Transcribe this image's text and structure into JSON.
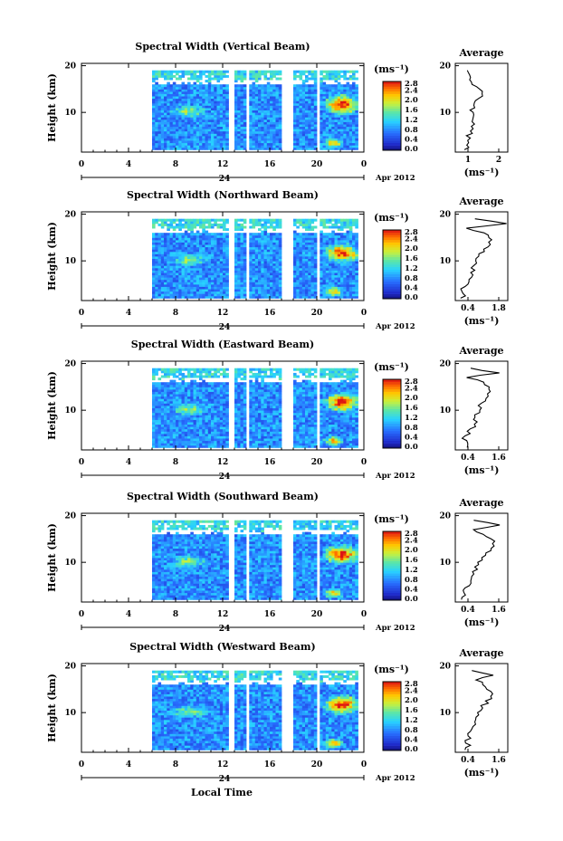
{
  "figure": {
    "xlabel": "Local Time",
    "day_label": "24",
    "date_label": "Apr 2012",
    "time_ticks": [
      "0",
      "4",
      "8",
      "12",
      "16",
      "20",
      "0"
    ],
    "height_ticks": [
      "20",
      "10"
    ],
    "ylabel": "Height (km)",
    "colorbar_unit": "(ms⁻¹)",
    "colorbar_ticks": [
      "2.8",
      "2.4",
      "2.0",
      "1.6",
      "1.2",
      "0.8",
      "0.4",
      "0.0"
    ],
    "avg_title": "Average",
    "avg_unit": "(ms⁻¹)"
  },
  "chart_data": [
    {
      "type": "heatmap",
      "title": "Spectral Width (Vertical Beam)",
      "xlabel": "Local Time",
      "ylabel": "Height (km)",
      "xlim": [
        0,
        24
      ],
      "ylim": [
        1.5,
        20.5
      ],
      "colorbar_range": [
        0.0,
        2.8
      ],
      "data_time_range": [
        6,
        23.5
      ],
      "gaps": [
        [
          12.6,
          13.1
        ],
        [
          13.9,
          14.2
        ],
        [
          17.0,
          18.1
        ],
        [
          19.9,
          20.3
        ]
      ],
      "avg_profile": {
        "xlim": [
          0,
          2.8
        ],
        "xticks": [
          "1",
          "2"
        ],
        "height": [
          2,
          3,
          4,
          5,
          6,
          7,
          8,
          9,
          10,
          11,
          12,
          13,
          14,
          15,
          16,
          17,
          18,
          19
        ],
        "value": [
          0.55,
          0.7,
          0.75,
          0.7,
          0.8,
          0.9,
          0.85,
          0.95,
          0.9,
          1.0,
          1.1,
          1.3,
          1.4,
          1.2,
          0.9,
          0.75,
          0.8,
          0.7
        ]
      }
    },
    {
      "type": "heatmap",
      "title": "Spectral Width (Northward Beam)",
      "xlabel": "Local Time",
      "ylabel": "Height (km)",
      "xlim": [
        0,
        24
      ],
      "ylim": [
        1.5,
        20.5
      ],
      "colorbar_range": [
        0.0,
        2.8
      ],
      "data_time_range": [
        6,
        23.5
      ],
      "gaps": [
        [
          12.6,
          13.1
        ],
        [
          13.9,
          14.2
        ],
        [
          17.0,
          18.1
        ],
        [
          19.9,
          20.3
        ]
      ],
      "avg_profile": {
        "xlim": [
          0.3,
          1.9
        ],
        "xticks": [
          "0.4",
          "1.8"
        ],
        "height": [
          2,
          3,
          4,
          5,
          6,
          7,
          8,
          9,
          10,
          11,
          12,
          13,
          14,
          15,
          16,
          17,
          18,
          19
        ],
        "value": [
          0.45,
          0.6,
          0.5,
          0.65,
          0.75,
          0.8,
          0.85,
          0.9,
          0.95,
          1.0,
          1.15,
          1.3,
          1.35,
          1.35,
          1.2,
          0.7,
          1.8,
          0.9
        ]
      }
    },
    {
      "type": "heatmap",
      "title": "Spectral Width (Eastward Beam)",
      "xlabel": "Local Time",
      "ylabel": "Height (km)",
      "xlim": [
        0,
        24
      ],
      "ylim": [
        1.5,
        20.5
      ],
      "colorbar_range": [
        0.0,
        2.8
      ],
      "data_time_range": [
        6,
        23.5
      ],
      "gaps": [
        [
          12.6,
          13.1
        ],
        [
          13.9,
          14.2
        ],
        [
          17.0,
          18.1
        ],
        [
          19.9,
          20.3
        ]
      ],
      "avg_profile": {
        "xlim": [
          0.3,
          1.9
        ],
        "xticks": [
          "0.4",
          "1.6"
        ],
        "height": [
          2,
          3,
          4,
          5,
          6,
          7,
          8,
          9,
          10,
          11,
          12,
          13,
          14,
          15,
          16,
          17,
          18,
          19
        ],
        "value": [
          0.6,
          0.7,
          0.55,
          0.7,
          0.8,
          0.85,
          0.9,
          0.95,
          1.0,
          1.05,
          1.2,
          1.35,
          1.4,
          1.3,
          1.2,
          0.7,
          1.6,
          0.8
        ]
      }
    },
    {
      "type": "heatmap",
      "title": "Spectral Width (Southward Beam)",
      "xlabel": "Local Time",
      "ylabel": "Height (km)",
      "xlim": [
        0,
        24
      ],
      "ylim": [
        1.5,
        20.5
      ],
      "colorbar_range": [
        0.0,
        2.8
      ],
      "data_time_range": [
        6,
        23.5
      ],
      "gaps": [
        [
          12.6,
          13.1
        ],
        [
          13.9,
          14.2
        ],
        [
          17.0,
          18.1
        ],
        [
          19.9,
          20.3
        ]
      ],
      "avg_profile": {
        "xlim": [
          0.3,
          1.9
        ],
        "xticks": [
          "0.4",
          "1.6"
        ],
        "height": [
          2,
          3,
          4,
          5,
          6,
          7,
          8,
          9,
          10,
          11,
          12,
          13,
          14,
          15,
          16,
          17,
          18,
          19
        ],
        "value": [
          0.55,
          0.65,
          0.6,
          0.7,
          0.8,
          0.85,
          0.85,
          0.95,
          1.0,
          1.1,
          1.25,
          1.4,
          1.45,
          1.4,
          1.2,
          0.8,
          1.7,
          0.8
        ]
      }
    },
    {
      "type": "heatmap",
      "title": "Spectral Width (Westward Beam)",
      "xlabel": "Local Time",
      "ylabel": "Height (km)",
      "xlim": [
        0,
        24
      ],
      "ylim": [
        1.5,
        20.5
      ],
      "colorbar_range": [
        0.0,
        2.8
      ],
      "data_time_range": [
        6,
        23.5
      ],
      "gaps": [
        [
          12.6,
          13.1
        ],
        [
          13.9,
          14.2
        ],
        [
          17.0,
          18.1
        ],
        [
          19.9,
          20.3
        ]
      ],
      "avg_profile": {
        "xlim": [
          0.3,
          1.9
        ],
        "xticks": [
          "0.4",
          "1.6"
        ],
        "height": [
          2,
          3,
          4,
          5,
          6,
          7,
          8,
          9,
          10,
          11,
          12,
          13,
          14,
          15,
          16,
          17,
          18,
          19
        ],
        "value": [
          0.6,
          0.7,
          0.6,
          0.75,
          0.8,
          0.85,
          0.9,
          0.95,
          1.0,
          1.1,
          1.25,
          1.35,
          1.4,
          1.3,
          1.2,
          0.9,
          1.5,
          0.8
        ]
      }
    }
  ]
}
